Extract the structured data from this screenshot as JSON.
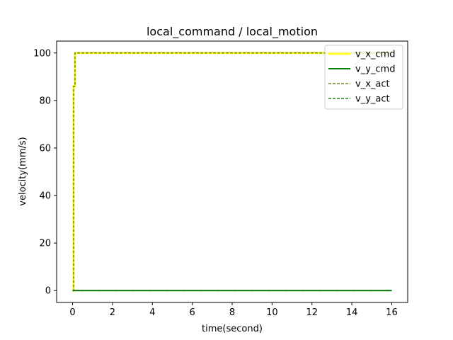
{
  "chart_data": {
    "type": "line",
    "title": "local_command / local_motion",
    "xlabel": "time(second)",
    "ylabel": "velocity(mm/s)",
    "xlim": [
      -0.8,
      16.8
    ],
    "ylim": [
      -5,
      105
    ],
    "xticks": [
      0,
      2,
      4,
      6,
      8,
      10,
      12,
      14,
      16
    ],
    "yticks": [
      0,
      20,
      40,
      60,
      80,
      100
    ],
    "grid": false,
    "legend_position": "top-right",
    "series": [
      {
        "name": "v_x_cmd",
        "color": "#ffff33",
        "style": "solid-thick",
        "x": [
          0,
          0.05,
          0.05,
          0.12,
          0.12,
          16
        ],
        "y": [
          0,
          0,
          86,
          86,
          100,
          100
        ]
      },
      {
        "name": "v_y_cmd",
        "color": "#008000",
        "style": "solid",
        "x": [
          0,
          16
        ],
        "y": [
          0,
          0
        ]
      },
      {
        "name": "v_x_act",
        "color": "#556b00",
        "style": "dashed",
        "x": [
          0,
          0.05,
          0.05,
          0.12,
          0.12,
          16
        ],
        "y": [
          0,
          0,
          86,
          86,
          100,
          100
        ]
      },
      {
        "name": "v_y_act",
        "color": "#006400",
        "style": "dashed",
        "x": [
          0,
          16
        ],
        "y": [
          0,
          0
        ]
      }
    ]
  }
}
